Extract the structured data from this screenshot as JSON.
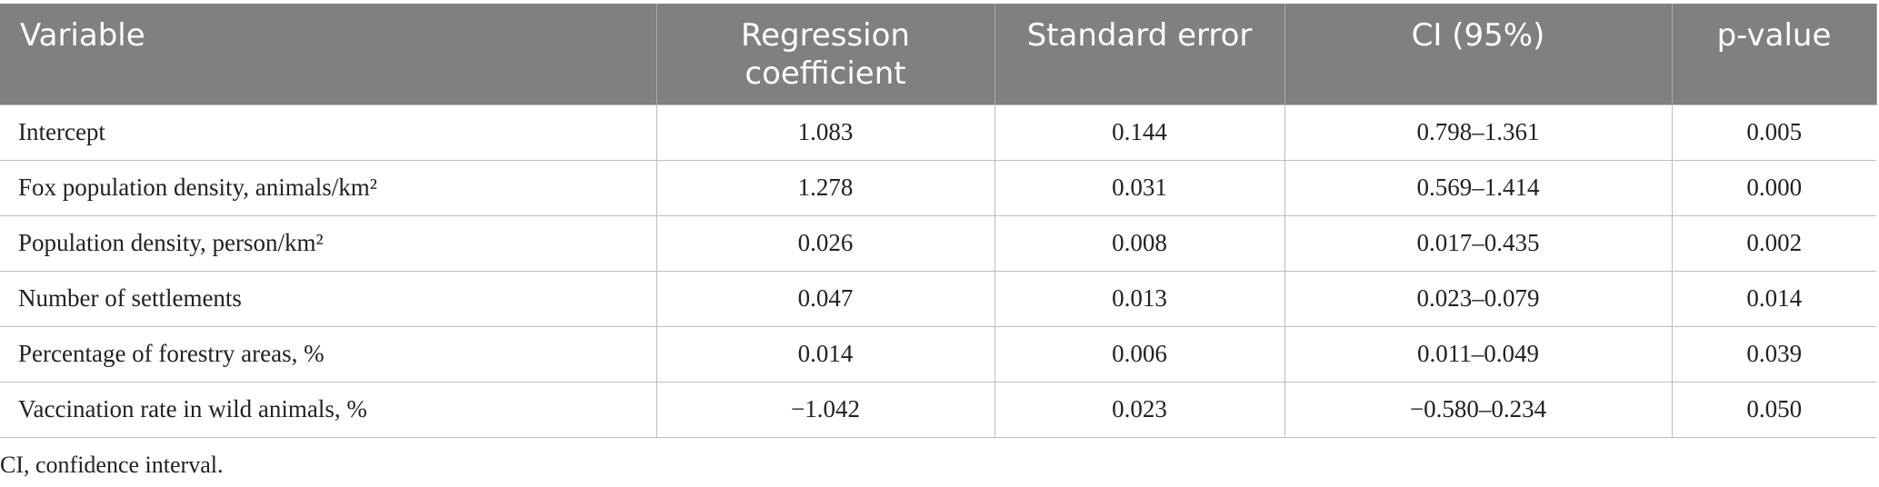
{
  "table": {
    "header": [
      "Variable",
      "Regression coefficient",
      "Standard error",
      "CI (95%)",
      "p-value"
    ],
    "rows": [
      [
        "Intercept",
        "1.083",
        "0.144",
        "0.798–1.361",
        "0.005"
      ],
      [
        "Fox population density, animals/km²",
        "1.278",
        "0.031",
        "0.569–1.414",
        "0.000"
      ],
      [
        "Population density, person/km²",
        "0.026",
        "0.008",
        "0.017–0.435",
        "0.002"
      ],
      [
        "Number of settlements",
        "0.047",
        "0.013",
        "0.023–0.079",
        "0.014"
      ],
      [
        "Percentage of forestry areas, %",
        "0.014",
        "0.006",
        "0.011–0.049",
        "0.039"
      ],
      [
        "Vaccination rate in wild animals, %",
        "−1.042",
        "0.023",
        "−0.580–0.234",
        "0.050"
      ]
    ],
    "footnote": "CI, confidence interval."
  }
}
